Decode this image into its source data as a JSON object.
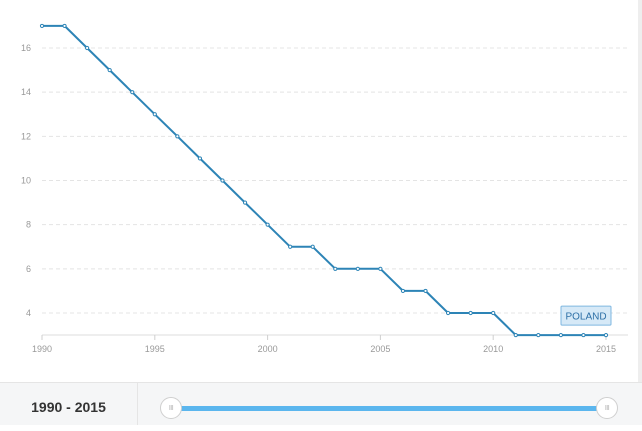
{
  "chart_data": {
    "type": "line",
    "x": [
      1990,
      1991,
      1992,
      1993,
      1994,
      1995,
      1996,
      1997,
      1998,
      1999,
      2000,
      2001,
      2002,
      2003,
      2004,
      2005,
      2006,
      2007,
      2008,
      2009,
      2010,
      2011,
      2012,
      2013,
      2014,
      2015
    ],
    "series": [
      {
        "name": "POLAND",
        "values": [
          17,
          17,
          16,
          15,
          14,
          13,
          12,
          11,
          10,
          9,
          8,
          7,
          7,
          6,
          6,
          6,
          5,
          5,
          4,
          4,
          4,
          3,
          3,
          3,
          3,
          3
        ]
      }
    ],
    "x_ticks": [
      1990,
      1995,
      2000,
      2005,
      2010,
      2015
    ],
    "y_ticks": [
      4,
      6,
      8,
      10,
      12,
      14,
      16
    ],
    "xlim": [
      1990,
      2015
    ],
    "ylim": [
      3,
      17.5
    ],
    "grid": "horizontal dashed",
    "line_color": "#2d84b6",
    "title": "",
    "xlabel": "",
    "ylabel": ""
  },
  "range": {
    "label": "1990 - 2015",
    "start": 1990,
    "end": 2015,
    "handle_glyph": "III",
    "track_color": "#5bb6ee"
  }
}
